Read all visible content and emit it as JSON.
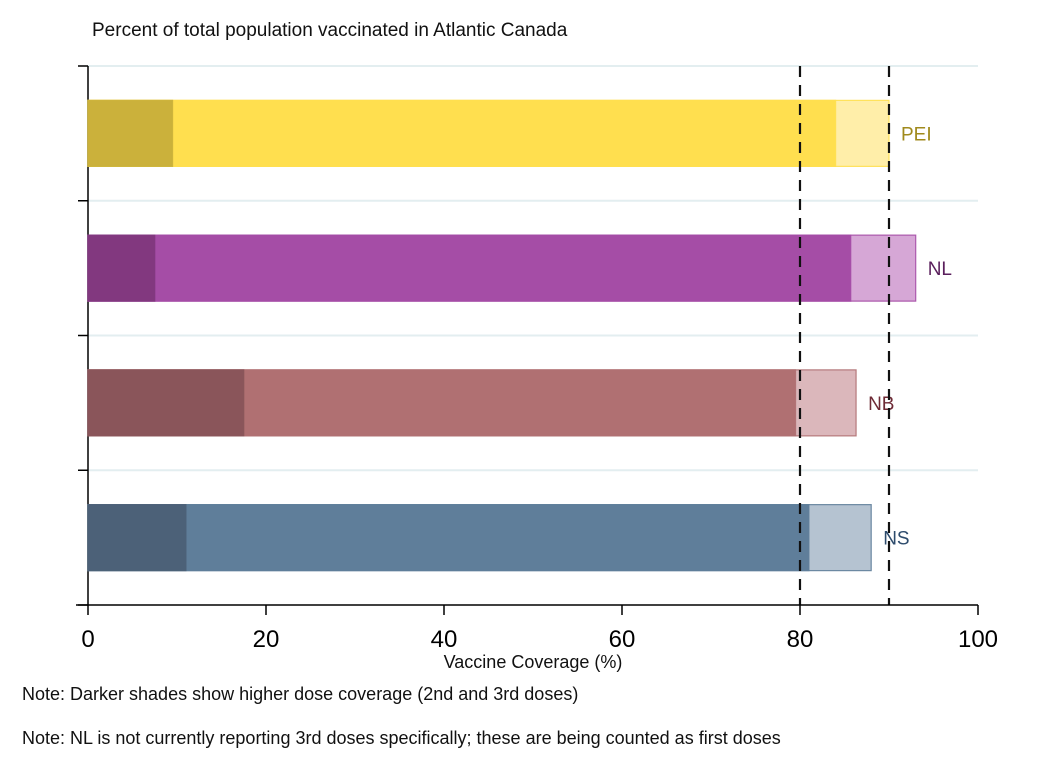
{
  "chart_data": {
    "type": "bar",
    "orientation": "horizontal",
    "stacked_overlay": true,
    "title": "Percent of total population vaccinated in Atlantic Canada",
    "xlabel": "Vaccine Coverage (%)",
    "xlim": [
      0,
      100
    ],
    "xticks": [
      "0",
      "20",
      "40",
      "60",
      "80",
      "100"
    ],
    "reference_lines": [
      80,
      90
    ],
    "grid": true,
    "categories": [
      "PEI",
      "NL",
      "NB",
      "NS"
    ],
    "series": [
      {
        "level": "3rd dose",
        "values": [
          9.5,
          7.5,
          17.5,
          11
        ]
      },
      {
        "level": "2nd dose",
        "values": [
          84,
          85.7,
          79.5,
          81
        ]
      },
      {
        "level": "1st dose",
        "values": [
          90,
          93,
          86.3,
          88
        ]
      }
    ],
    "colors": {
      "PEI": [
        "#cbb13b",
        "#ffdf4f",
        "#ffeea9"
      ],
      "NL": [
        "#82387f",
        "#a54da6",
        "#d6a7d6"
      ],
      "NB": [
        "#8a555a",
        "#b07072",
        "#dbb7bb"
      ],
      "NS": [
        "#4c6178",
        "#5f7e9a",
        "#b5c3d1"
      ]
    },
    "label_colors": {
      "PEI": "#a08a1c",
      "NL": "#5a1f5c",
      "NB": "#6e2a35",
      "NS": "#2d4b6c"
    }
  },
  "notes": [
    "Note: Darker shades show higher dose coverage (2nd and 3rd doses)",
    "Note: NL is not currently reporting 3rd doses specifically; these are being counted as first doses"
  ]
}
